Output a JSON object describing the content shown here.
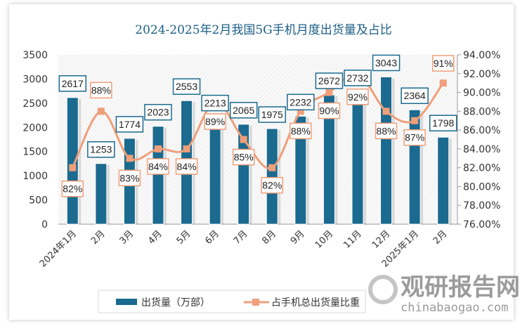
{
  "chart_data": {
    "type": "bar+line",
    "title": "2024-2025年2月我国5G手机月度出货量及占比",
    "categories": [
      "2024年1月",
      "2月",
      "3月",
      "4月",
      "5月",
      "6月",
      "7月",
      "8月",
      "9月",
      "10月",
      "11月",
      "12月",
      "2025年1月",
      "2月"
    ],
    "series": [
      {
        "name": "出货量（万部）",
        "type": "bar",
        "axis": "left",
        "color": "#1b6a8f",
        "values": [
          2617,
          1253,
          1774,
          2023,
          2553,
          2213,
          2065,
          1975,
          2232,
          2672,
          2732,
          3043,
          2364,
          1798
        ]
      },
      {
        "name": "占手机总出货量比重",
        "type": "line",
        "axis": "right",
        "color": "#ef9f7a",
        "values": [
          82,
          88,
          83,
          84,
          84,
          89,
          85,
          82,
          88,
          90,
          92,
          88,
          87,
          91
        ],
        "labels": [
          "82%",
          "88%",
          "83%",
          "84%",
          "84%",
          "89%",
          "85%",
          "82%",
          "88%",
          "90%",
          "92%",
          "88%",
          "87%",
          "91%"
        ]
      }
    ],
    "y_left": {
      "range": [
        0,
        3500
      ],
      "ticks": [
        "0",
        "500",
        "1000",
        "1500",
        "2000",
        "2500",
        "3000",
        "3500"
      ]
    },
    "y_right": {
      "range": [
        76,
        94
      ],
      "ticks": [
        "76.00%",
        "78.00%",
        "80.00%",
        "82.00%",
        "84.00%",
        "86.00%",
        "88.00%",
        "90.00%",
        "92.00%",
        "94.00%"
      ]
    },
    "legend_placement": "bottom",
    "grid": false
  },
  "watermark": {
    "name": "观研报告网",
    "url": "chinabaogao.com"
  }
}
